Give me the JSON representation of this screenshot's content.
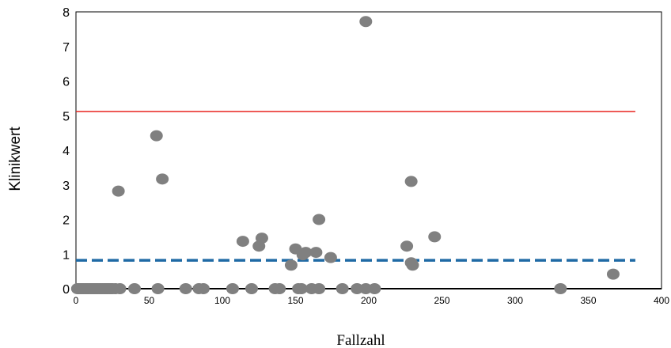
{
  "chart_data": {
    "type": "scatter",
    "xlabel": "Fallzahl",
    "ylabel": "Klinikwert",
    "xlim": [
      0,
      400
    ],
    "ylim": [
      0,
      8
    ],
    "x_ticks": [
      0,
      50,
      100,
      150,
      200,
      250,
      300,
      350,
      400
    ],
    "y_ticks": [
      0,
      1,
      2,
      3,
      4,
      5,
      6,
      7,
      8
    ],
    "grid": false,
    "point_color": "#808080",
    "points": [
      {
        "x": 1,
        "y": 0
      },
      {
        "x": 2,
        "y": 0
      },
      {
        "x": 3,
        "y": 0
      },
      {
        "x": 4,
        "y": 0
      },
      {
        "x": 5,
        "y": 0
      },
      {
        "x": 6,
        "y": 0
      },
      {
        "x": 7,
        "y": 0
      },
      {
        "x": 8,
        "y": 0
      },
      {
        "x": 9,
        "y": 0
      },
      {
        "x": 10,
        "y": 0
      },
      {
        "x": 11,
        "y": 0
      },
      {
        "x": 12,
        "y": 0
      },
      {
        "x": 13,
        "y": 0
      },
      {
        "x": 14,
        "y": 0
      },
      {
        "x": 15,
        "y": 0
      },
      {
        "x": 16,
        "y": 0
      },
      {
        "x": 17,
        "y": 0
      },
      {
        "x": 18,
        "y": 0
      },
      {
        "x": 19,
        "y": 0
      },
      {
        "x": 20,
        "y": 0
      },
      {
        "x": 21,
        "y": 0
      },
      {
        "x": 22,
        "y": 0
      },
      {
        "x": 23,
        "y": 0
      },
      {
        "x": 24,
        "y": 0
      },
      {
        "x": 25,
        "y": 0
      },
      {
        "x": 27,
        "y": 0
      },
      {
        "x": 30,
        "y": 0
      },
      {
        "x": 29,
        "y": 2.82
      },
      {
        "x": 40,
        "y": 0
      },
      {
        "x": 55,
        "y": 4.42
      },
      {
        "x": 56,
        "y": 0
      },
      {
        "x": 59,
        "y": 3.17
      },
      {
        "x": 75,
        "y": 0
      },
      {
        "x": 84,
        "y": 0
      },
      {
        "x": 87,
        "y": 0
      },
      {
        "x": 107,
        "y": 0
      },
      {
        "x": 114,
        "y": 1.37
      },
      {
        "x": 120,
        "y": 0
      },
      {
        "x": 125,
        "y": 1.23
      },
      {
        "x": 127,
        "y": 1.46
      },
      {
        "x": 136,
        "y": 0
      },
      {
        "x": 139,
        "y": 0
      },
      {
        "x": 147,
        "y": 0.68
      },
      {
        "x": 150,
        "y": 1.15
      },
      {
        "x": 152,
        "y": 0
      },
      {
        "x": 154,
        "y": 0
      },
      {
        "x": 155,
        "y": 0.98
      },
      {
        "x": 157,
        "y": 1.05
      },
      {
        "x": 161,
        "y": 0
      },
      {
        "x": 164,
        "y": 1.05
      },
      {
        "x": 166,
        "y": 2.0
      },
      {
        "x": 166,
        "y": 0
      },
      {
        "x": 174,
        "y": 0.9
      },
      {
        "x": 182,
        "y": 0
      },
      {
        "x": 192,
        "y": 0
      },
      {
        "x": 198,
        "y": 7.72
      },
      {
        "x": 198,
        "y": 0
      },
      {
        "x": 204,
        "y": 0
      },
      {
        "x": 226,
        "y": 1.23
      },
      {
        "x": 229,
        "y": 3.1
      },
      {
        "x": 229,
        "y": 0.75
      },
      {
        "x": 230,
        "y": 0.68
      },
      {
        "x": 245,
        "y": 1.5
      },
      {
        "x": 331,
        "y": 0
      },
      {
        "x": 367,
        "y": 0.42
      }
    ],
    "lines": [
      {
        "style": "solid",
        "color": "#e8231f",
        "y": 5.12,
        "x_range": [
          0,
          367
        ]
      },
      {
        "style": "dashed",
        "color": "#1f6aa5",
        "y": 0.82,
        "x_range": [
          0,
          367
        ]
      }
    ]
  }
}
